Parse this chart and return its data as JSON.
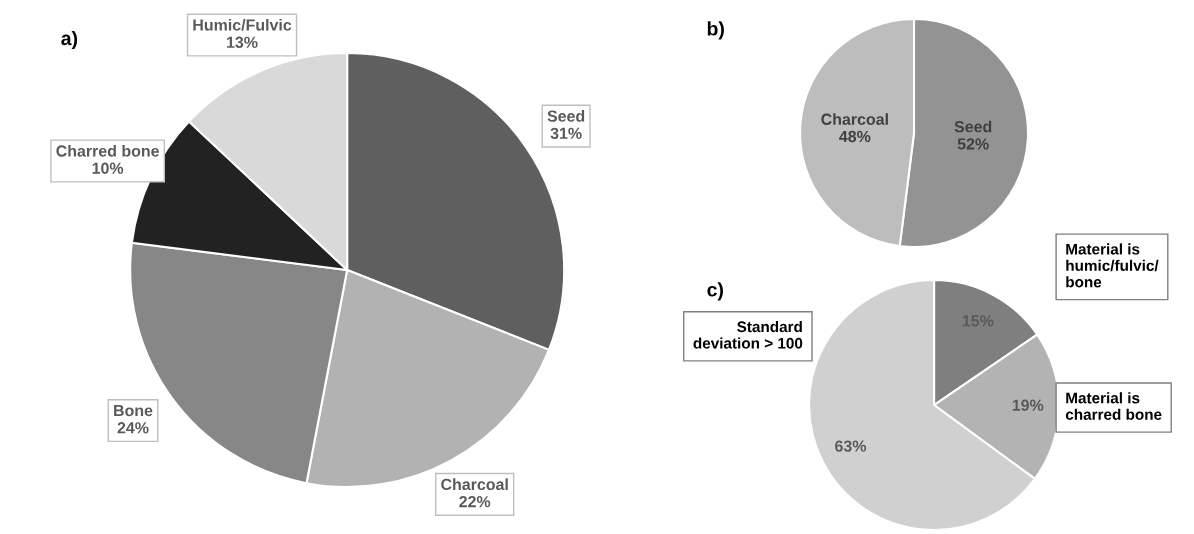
{
  "chart_data": [
    {
      "type": "pie",
      "title": "a)",
      "categories": [
        "Seed",
        "Charcoal",
        "Bone",
        "Charred bone",
        "Humic/Fulvic"
      ],
      "values": [
        31,
        22,
        24,
        10,
        13
      ],
      "colors": [
        "#5f5f5f",
        "#b2b2b2",
        "#878787",
        "#222222",
        "#d9d9d9"
      ],
      "value_labels": [
        "31%",
        "22%",
        "24%",
        "10%",
        "13%"
      ]
    },
    {
      "type": "pie",
      "title": "b)",
      "categories": [
        "Seed",
        "Charcoal"
      ],
      "values": [
        52,
        48
      ],
      "colors": [
        "#939393",
        "#bdbdbd"
      ],
      "value_labels": [
        "52%",
        "48%"
      ]
    },
    {
      "type": "pie",
      "title": "c)",
      "categories": [
        "Material is\nhumic/fulvic/\nbone",
        "Material is\ncharred bone",
        "Standard\ndeviation > 100"
      ],
      "values": [
        15,
        19,
        63
      ],
      "colors": [
        "#7f7f7f",
        "#b3b3b3",
        "#d0d0d0"
      ],
      "value_labels": [
        "15%",
        "19%",
        "63%"
      ]
    }
  ]
}
